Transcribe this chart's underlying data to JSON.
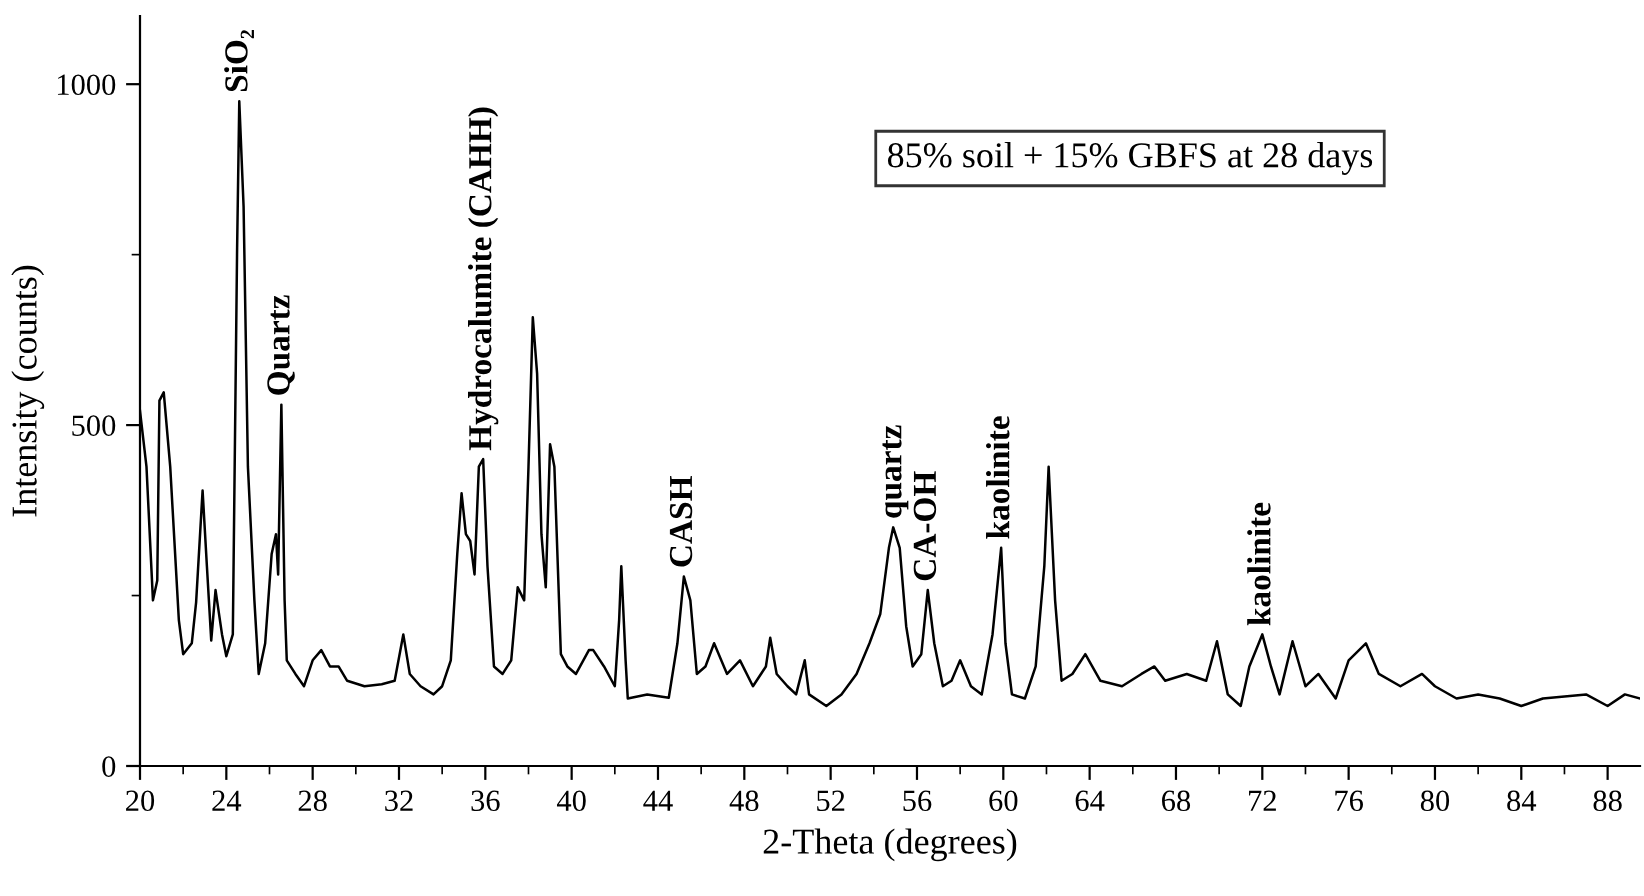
{
  "chart_data": {
    "type": "line",
    "xlabel": "2-Theta (degrees)",
    "ylabel": "Intensity (counts)",
    "xlim": [
      20,
      89.5
    ],
    "ylim": [
      0,
      1100
    ],
    "xticks": [
      20,
      {
        "value": 22,
        "label": null
      },
      24,
      {
        "value": 26,
        "label": null
      },
      28,
      {
        "value": 30,
        "label": null
      },
      32,
      {
        "value": 34,
        "label": null
      },
      36,
      {
        "value": 38,
        "label": null
      },
      40,
      {
        "value": 42,
        "label": null
      },
      44,
      {
        "value": 46,
        "label": null
      },
      48,
      {
        "value": 50,
        "label": null
      },
      52,
      {
        "value": 54,
        "label": null
      },
      56,
      {
        "value": 58,
        "label": null
      },
      60,
      {
        "value": 62,
        "label": null
      },
      64,
      {
        "value": 66,
        "label": null
      },
      68,
      {
        "value": 70,
        "label": null
      },
      72,
      {
        "value": 74,
        "label": null
      },
      76,
      {
        "value": 78,
        "label": null
      },
      80,
      {
        "value": 82,
        "label": null
      },
      84,
      {
        "value": 86,
        "label": null
      },
      88
    ],
    "yticks": [
      0,
      {
        "value": 250,
        "label": null
      },
      500,
      {
        "value": 750,
        "label": null
      },
      1000
    ],
    "grid": false,
    "legend": false,
    "marker": "none",
    "line_style": "solid",
    "series": [
      {
        "color": "#000000",
        "x": [
          20,
          20.3,
          20.6,
          20.8,
          20.9,
          21.1,
          21.4,
          21.8,
          22.0,
          22.4,
          22.6,
          22.9,
          23.1,
          23.3,
          23.5,
          23.8,
          24.0,
          24.3,
          24.5,
          24.6,
          24.8,
          25.0,
          25.3,
          25.5,
          25.8,
          26.1,
          26.3,
          26.4,
          26.55,
          26.7,
          26.8,
          27.2,
          27.6,
          28.0,
          28.4,
          28.8,
          29.2,
          29.6,
          30.4,
          31.2,
          31.8,
          32.2,
          32.5,
          33.0,
          33.6,
          34.0,
          34.4,
          34.7,
          34.9,
          35.1,
          35.3,
          35.5,
          35.7,
          35.9,
          36.1,
          36.4,
          36.8,
          37.2,
          37.5,
          37.8,
          38.0,
          38.2,
          38.4,
          38.6,
          38.8,
          39.0,
          39.2,
          39.5,
          39.8,
          40.2,
          40.8,
          41.0,
          41.5,
          42.0,
          42.2,
          42.3,
          42.5,
          42.6,
          43.5,
          44.5,
          44.9,
          45.2,
          45.5,
          45.8,
          46.2,
          46.6,
          47.2,
          47.8,
          48.4,
          49.0,
          49.2,
          49.5,
          50.0,
          50.4,
          50.8,
          51.0,
          51.8,
          52.5,
          53.2,
          53.8,
          54.3,
          54.7,
          54.9,
          55.2,
          55.5,
          55.8,
          56.2,
          56.5,
          56.8,
          57.2,
          57.6,
          58.0,
          58.5,
          59.0,
          59.5,
          59.9,
          60.1,
          60.4,
          61.0,
          61.5,
          61.9,
          62.1,
          62.4,
          62.7,
          63.2,
          63.8,
          64.5,
          65.5,
          66.4,
          67.0,
          67.5,
          68.5,
          69.4,
          69.9,
          70.4,
          71.0,
          71.4,
          72.0,
          72.4,
          72.8,
          73.4,
          74.0,
          74.6,
          75.4,
          76.0,
          76.8,
          77.4,
          78.4,
          79.4,
          80.0,
          81.0,
          82.0,
          83.0,
          84.0,
          85.0,
          86.0,
          87.0,
          88.0,
          88.8,
          89.5
        ],
        "values": [
          521,
          439,
          243,
          272,
          536,
          548,
          439,
          214,
          164,
          180,
          240,
          404,
          293,
          184,
          258,
          193,
          161,
          193,
          761,
          975,
          820,
          439,
          243,
          135,
          180,
          311,
          340,
          281,
          530,
          243,
          155,
          135,
          117,
          155,
          170,
          146,
          146,
          125,
          117,
          120,
          125,
          193,
          135,
          117,
          105,
          117,
          155,
          311,
          400,
          340,
          330,
          281,
          439,
          450,
          293,
          146,
          135,
          155,
          262,
          243,
          439,
          658,
          575,
          340,
          262,
          472,
          439,
          164,
          146,
          135,
          170,
          170,
          146,
          117,
          214,
          293,
          155,
          99,
          105,
          100,
          180,
          278,
          243,
          135,
          146,
          180,
          135,
          155,
          117,
          146,
          188,
          135,
          117,
          105,
          155,
          105,
          88,
          105,
          135,
          180,
          223,
          320,
          350,
          320,
          205,
          146,
          164,
          258,
          180,
          117,
          125,
          155,
          117,
          105,
          193,
          320,
          180,
          105,
          99,
          146,
          293,
          439,
          243,
          125,
          135,
          164,
          125,
          117,
          135,
          146,
          125,
          135,
          125,
          183,
          105,
          88,
          146,
          193,
          146,
          105,
          183,
          117,
          135,
          99,
          155,
          180,
          135,
          117,
          135,
          117,
          99,
          105,
          99,
          88,
          99,
          102,
          105,
          88,
          105,
          99
        ]
      }
    ],
    "annotations": [
      {
        "text": "SiO₂",
        "x": 24.6,
        "y": 975
      },
      {
        "text": "Quartz",
        "x": 26.55,
        "y": 530
      },
      {
        "text": "Hydrocalumite (CAHH)",
        "x": 35.9,
        "y": 450
      },
      {
        "text": "CASH",
        "x": 45.2,
        "y": 278
      },
      {
        "text": "quartz",
        "x": 54.9,
        "y": 350
      },
      {
        "text": "CA-OH",
        "x": 56.5,
        "y": 258
      },
      {
        "text": "kaolinite",
        "x": 59.9,
        "y": 320
      },
      {
        "text": "kaolinite",
        "x": 72.0,
        "y": 193
      },
      "85% soil + 15% GBFS at 28 days"
    ]
  }
}
